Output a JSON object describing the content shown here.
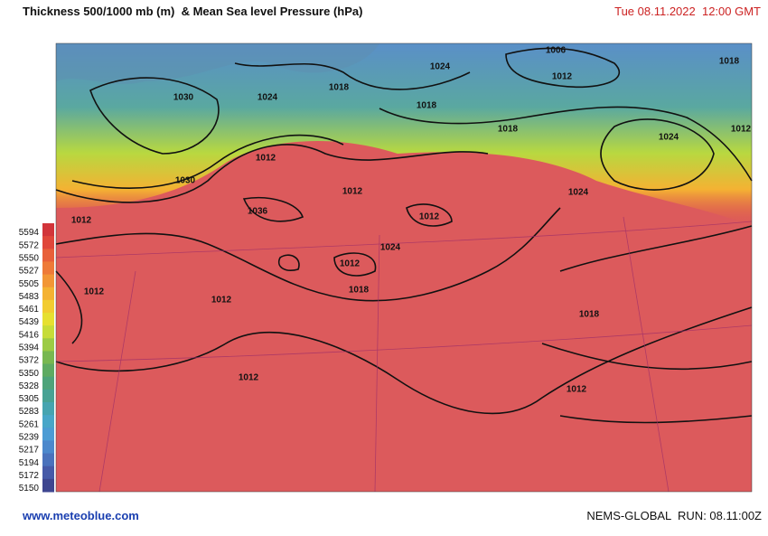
{
  "header": {
    "title": "Thickness 500/1000 mb (m)  & Mean Sea level Pressure (hPa)",
    "datetime": "Tue 08.11.2022  12:00 GMT"
  },
  "legend": {
    "items": [
      {
        "label": "5594",
        "color": "#d2353a"
      },
      {
        "label": "5572",
        "color": "#e0473a"
      },
      {
        "label": "5550",
        "color": "#e8603a"
      },
      {
        "label": "5527",
        "color": "#ee7a38"
      },
      {
        "label": "5505",
        "color": "#f29636"
      },
      {
        "label": "5483",
        "color": "#f4b233"
      },
      {
        "label": "5461",
        "color": "#f2cc30"
      },
      {
        "label": "5439",
        "color": "#e6e030"
      },
      {
        "label": "5416",
        "color": "#c6dc38"
      },
      {
        "label": "5394",
        "color": "#9ccb44"
      },
      {
        "label": "5372",
        "color": "#78b850"
      },
      {
        "label": "5350",
        "color": "#5eab62"
      },
      {
        "label": "5328",
        "color": "#4ea47a"
      },
      {
        "label": "5305",
        "color": "#48a294"
      },
      {
        "label": "5283",
        "color": "#46a4b0"
      },
      {
        "label": "5261",
        "color": "#48a6c8"
      },
      {
        "label": "5239",
        "color": "#4c9cd4"
      },
      {
        "label": "5217",
        "color": "#4c88cc"
      },
      {
        "label": "5194",
        "color": "#4a72bc"
      },
      {
        "label": "5172",
        "color": "#465aa8"
      },
      {
        "label": "5150",
        "color": "#3e4690"
      }
    ]
  },
  "map": {
    "isobar_labels": [
      "1030",
      "1024",
      "1018",
      "1024",
      "1006",
      "1012",
      "1018",
      "1018",
      "1018",
      "1024",
      "1012",
      "1012",
      "1030",
      "1012",
      "1024",
      "1012",
      "1036",
      "1012",
      "1024",
      "1012",
      "1018",
      "1012",
      "1012",
      "1018",
      "1012",
      "1012"
    ]
  },
  "footer": {
    "source": "www.meteoblue.com",
    "run": "NEMS-GLOBAL  RUN: 08.11:00Z"
  }
}
